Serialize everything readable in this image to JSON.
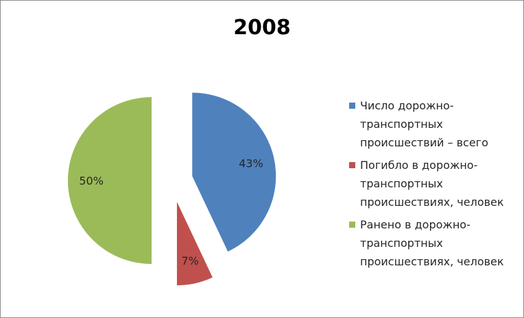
{
  "chart_data": {
    "type": "pie",
    "title": "2008",
    "categories": [
      "Число дорожно-транспортных происшествий – всего",
      "Погибло в дорожно-транспортных происшествиях, человек",
      "Ранено в дорожно-транспортных происшествиях, человек"
    ],
    "values": [
      43,
      7,
      50
    ],
    "labels": [
      "43%",
      "7%",
      "50%"
    ],
    "colors": [
      "#4f81bd",
      "#c0504d",
      "#9bbb59"
    ],
    "exploded": true,
    "legend_position": "right"
  },
  "legend": [
    {
      "lines": [
        "Число дорожно-",
        "транспортных",
        "происшествий – всего"
      ],
      "color": "#4f81bd"
    },
    {
      "lines": [
        "Погибло в дорожно-",
        "транспортных",
        "происшествиях, человек"
      ],
      "color": "#c0504d"
    },
    {
      "lines": [
        "Ранено в дорожно-",
        "транспортных",
        "происшествиях, человек"
      ],
      "color": "#9bbb59"
    }
  ]
}
